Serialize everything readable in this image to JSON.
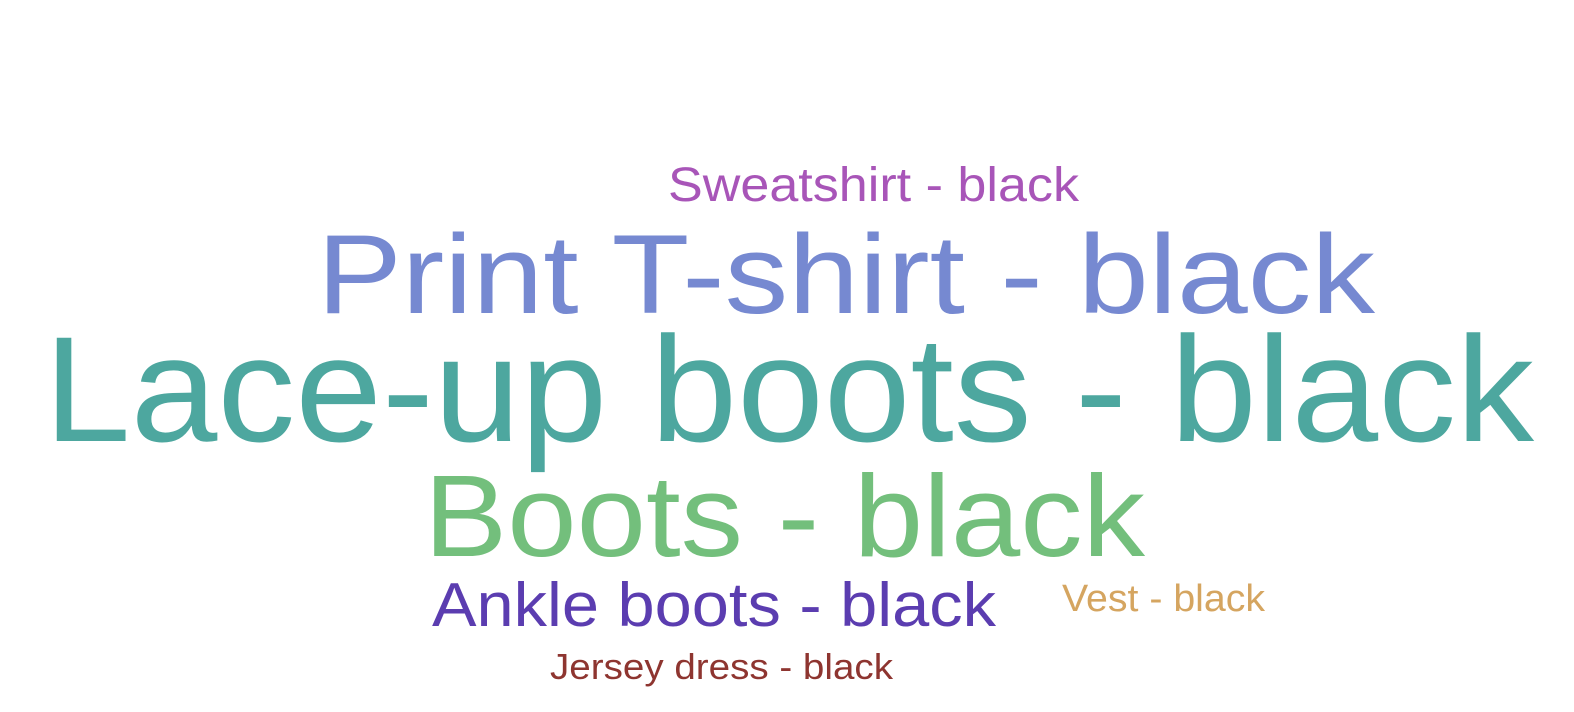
{
  "chart_data": {
    "type": "wordcloud",
    "title": "",
    "words": [
      {
        "text": "Sweatshirt - black",
        "color": "#a855b8"
      },
      {
        "text": "Print T-shirt - black",
        "color": "#7689d1"
      },
      {
        "text": "Lace-up boots - black",
        "color": "#4da79f"
      },
      {
        "text": "Boots - black",
        "color": "#73bf7c"
      },
      {
        "text": "Ankle boots - black",
        "color": "#5b3db0"
      },
      {
        "text": "Vest - black",
        "color": "#d5a560"
      },
      {
        "text": "Jersey dress - black",
        "color": "#8e3530"
      }
    ]
  }
}
